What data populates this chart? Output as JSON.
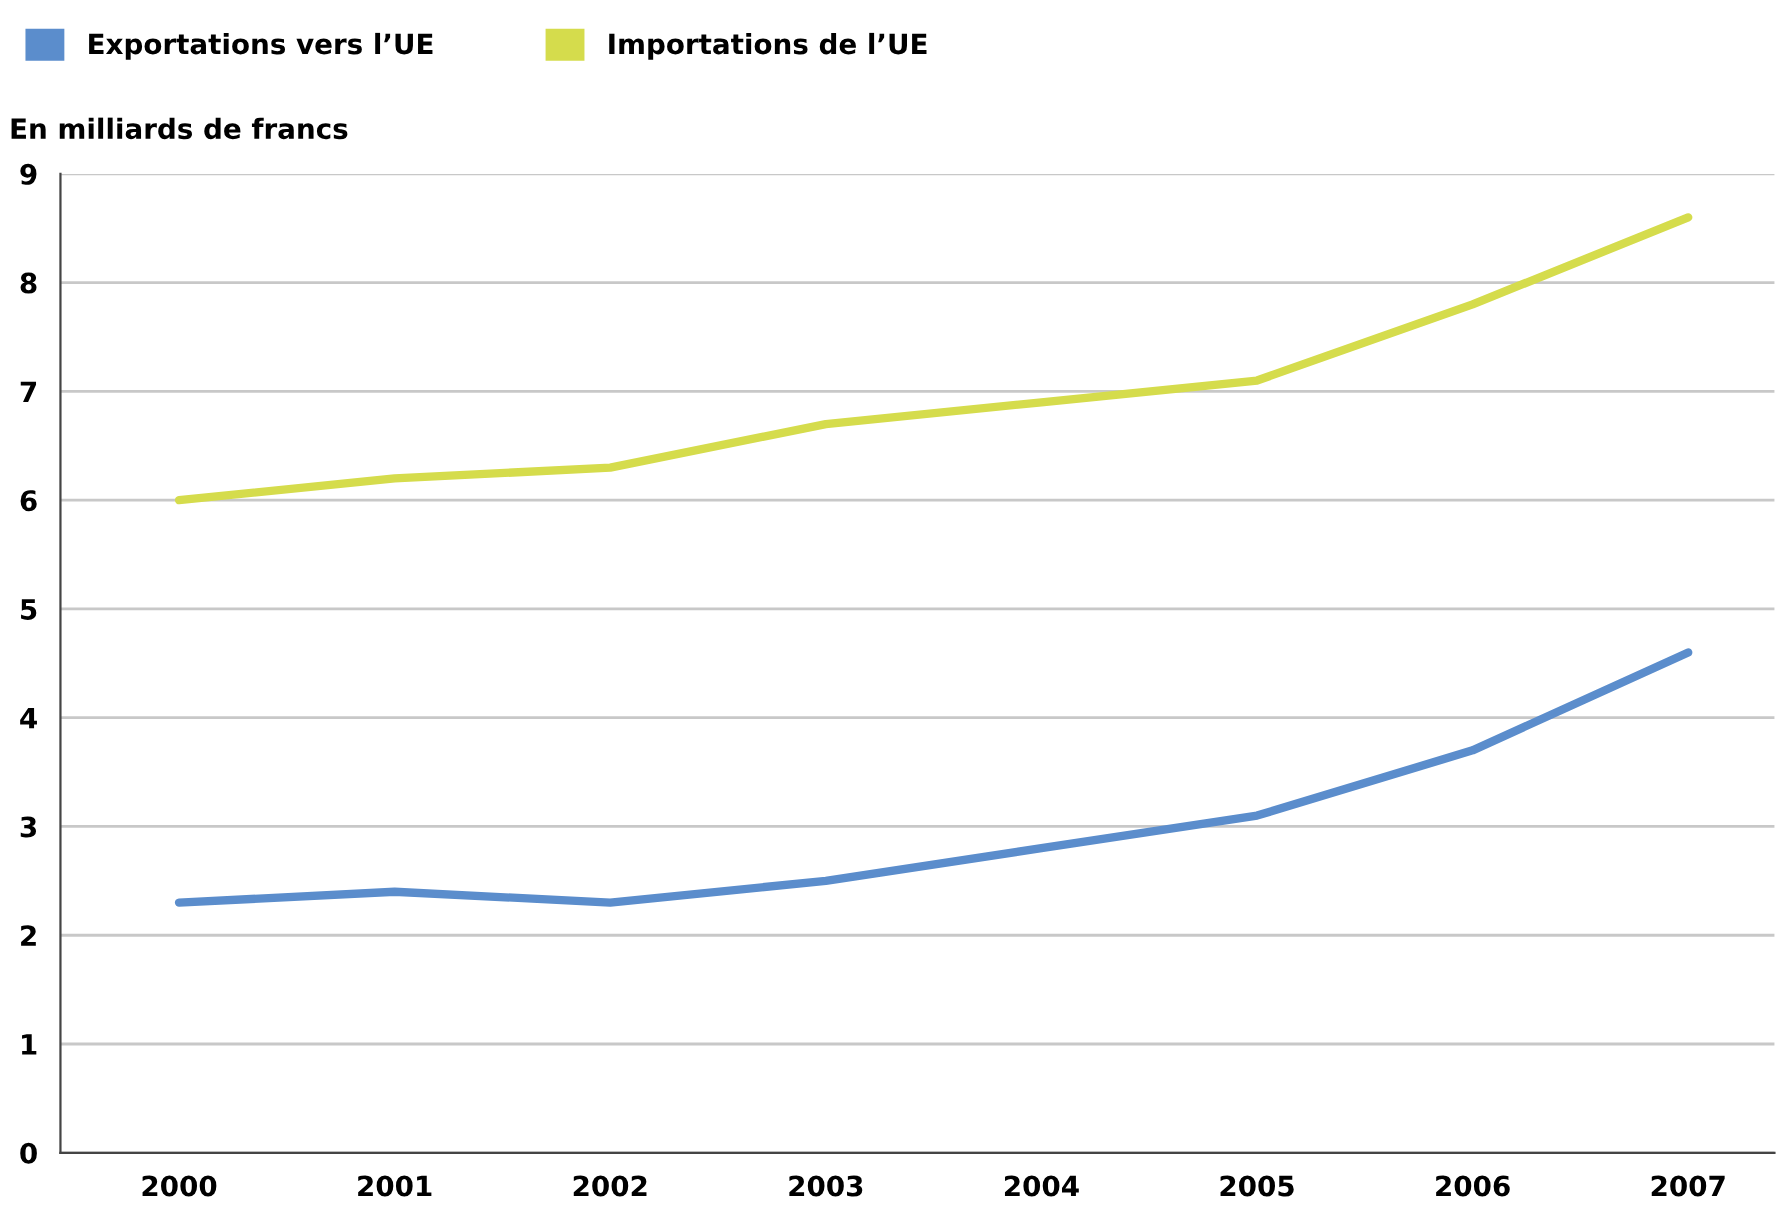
{
  "chart_data": {
    "type": "line",
    "ylabel": "En milliards de francs",
    "categories": [
      "2000",
      "2001",
      "2002",
      "2003",
      "2004",
      "2005",
      "2006",
      "2007"
    ],
    "series": [
      {
        "name": "Exportations vers l’UE",
        "color": "#5b8dcc",
        "values": [
          2.3,
          2.4,
          2.3,
          2.5,
          2.8,
          3.1,
          3.7,
          4.6
        ]
      },
      {
        "name": "Importations de l’UE",
        "color": "#d5dc4c",
        "values": [
          6.0,
          6.2,
          6.3,
          6.7,
          6.9,
          7.1,
          7.8,
          8.6
        ]
      }
    ],
    "ylim": [
      0,
      9
    ],
    "yticks": [
      0,
      1,
      2,
      3,
      4,
      5,
      6,
      7,
      8,
      9
    ],
    "grid": "y",
    "legend": "top left",
    "marker": "none",
    "line_style": "solid"
  }
}
